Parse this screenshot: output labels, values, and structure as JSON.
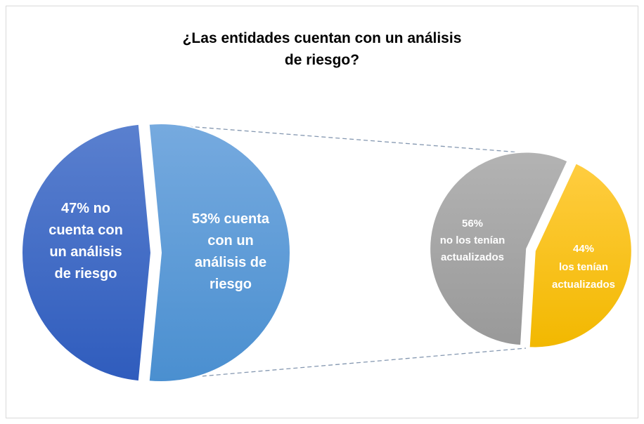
{
  "chart_data": {
    "type": "pie",
    "title": "¿Las entidades cuentan con un análisis de riesgo?",
    "values": [
      47,
      53
    ],
    "value_labels": [
      "47% no cuenta con un análisis de riesgo",
      "53% cuenta con un análisis de riesgo"
    ],
    "colors": [
      "#3d6cc6",
      "#5b9bd5"
    ],
    "secondary": {
      "type": "pie",
      "values": [
        56,
        44
      ],
      "value_labels": [
        "56%",
        "44%"
      ],
      "categories": [
        "no los tenían actualizados",
        "los tenían actualizados"
      ],
      "colors": [
        "#a5a5a5",
        "#ffc000"
      ]
    }
  }
}
